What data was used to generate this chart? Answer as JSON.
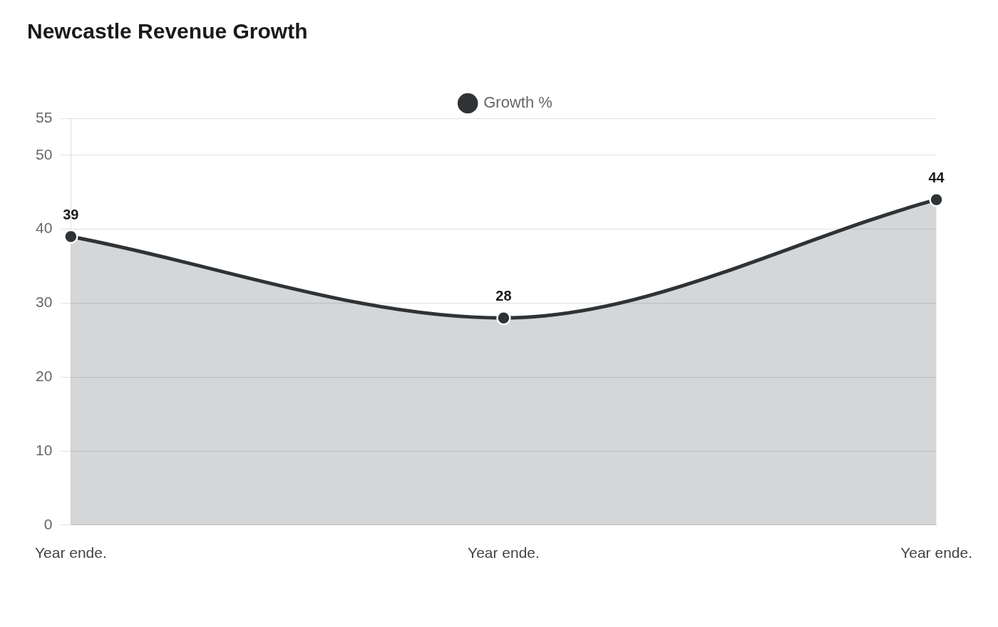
{
  "chart_data": {
    "type": "area",
    "title": "Newcastle Revenue Growth",
    "categories": [
      "Year ende.",
      "Year ende.",
      "Year ende."
    ],
    "series": [
      {
        "name": "Growth %",
        "color": "#2f3336",
        "values": [
          39,
          28,
          44
        ]
      }
    ],
    "ylim": [
      0,
      55
    ],
    "yticks": [
      0,
      10,
      20,
      30,
      40,
      50,
      55
    ],
    "grid": "y",
    "legend": "top",
    "marker": "circle",
    "line_style": "solid",
    "data_labels": true
  }
}
